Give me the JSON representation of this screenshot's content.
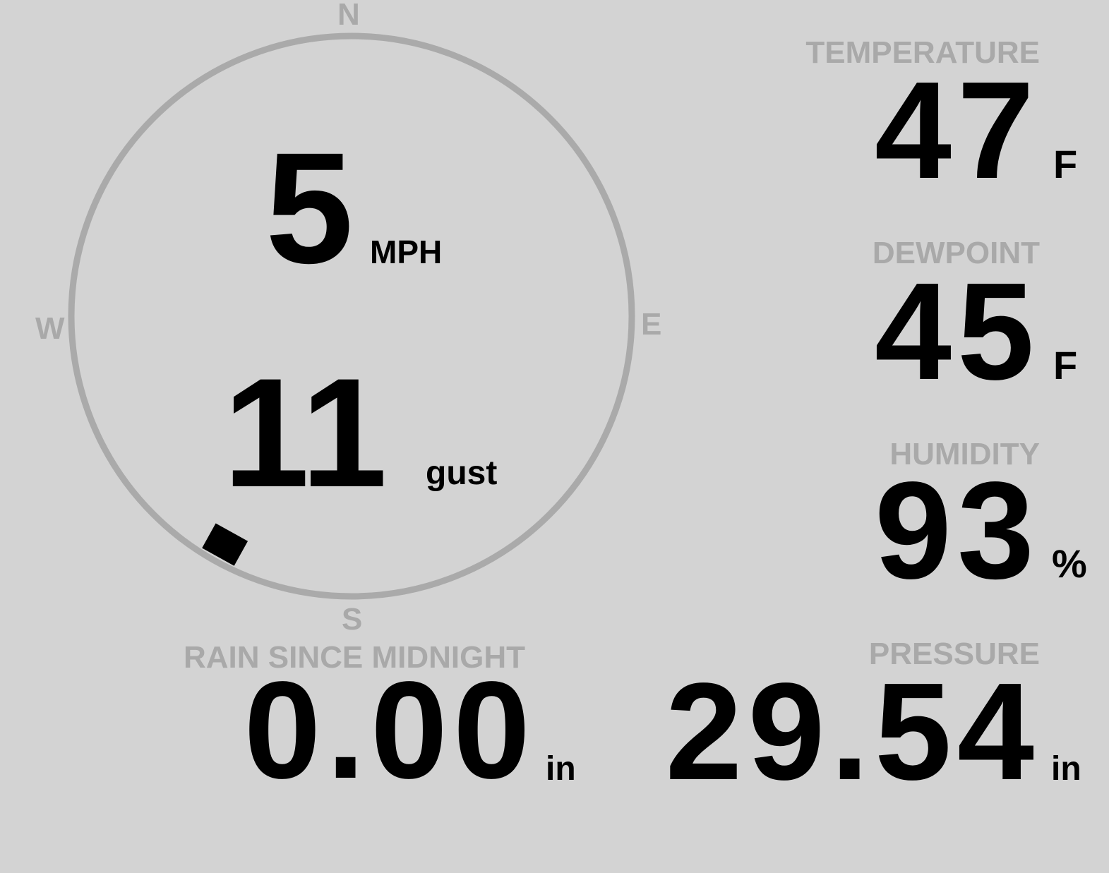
{
  "colors": {
    "background": "#d3d3d3",
    "label": "#a9a9a9",
    "value": "#000000",
    "compass_ring": "#aaaaaa"
  },
  "wind": {
    "compass": {
      "n": "N",
      "s": "S",
      "e": "E",
      "w": "W"
    },
    "direction_degrees": 209,
    "speed": "5",
    "speed_unit": "MPH",
    "gust": "11",
    "gust_label": "gust"
  },
  "temperature": {
    "label": "TEMPERATURE",
    "value": "47",
    "unit": "F"
  },
  "dewpoint": {
    "label": "DEWPOINT",
    "value": "45",
    "unit": "F"
  },
  "humidity": {
    "label": "HUMIDITY",
    "value": "93",
    "unit": "%"
  },
  "pressure": {
    "label": "PRESSURE",
    "value": "29.54",
    "unit": "in"
  },
  "rain": {
    "label": "RAIN SINCE MIDNIGHT",
    "value": "0.00",
    "unit": "in"
  }
}
